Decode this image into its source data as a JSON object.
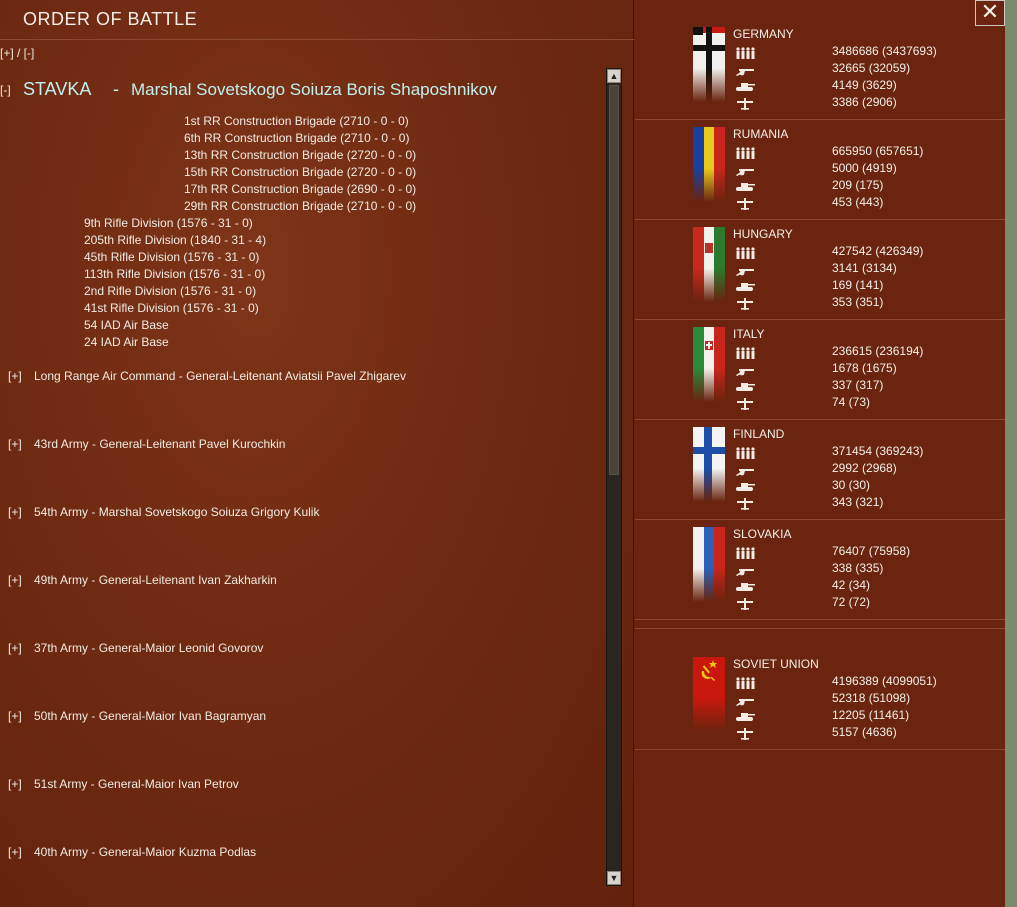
{
  "window": {
    "title": "ORDER OF BATTLE",
    "expand_collapse": "[+] / [-]",
    "close_glyph": "✕"
  },
  "hq": {
    "toggle": "[-]",
    "name": "STAVKA",
    "separator": "-",
    "commander": "Marshal Sovetskogo Soiuza Boris Shaposhnikov"
  },
  "brigades": [
    "1st RR Construction Brigade  (2710 - 0 - 0)",
    "6th RR Construction Brigade  (2710 - 0 - 0)",
    "13th RR Construction Brigade  (2720 - 0 - 0)",
    "15th RR Construction Brigade  (2720 - 0 - 0)",
    "17th RR Construction Brigade  (2690 - 0 - 0)",
    "29th RR Construction Brigade  (2710 - 0 - 0)"
  ],
  "divisions": [
    "9th Rifle Division  (1576 - 31 - 0)",
    "205th Rifle Division  (1840 - 31 - 4)",
    "45th Rifle Division  (1576 - 31 - 0)",
    "113th Rifle Division  (1576 - 31 - 0)",
    "2nd Rifle Division  (1576 - 31 - 0)",
    "41st Rifle Division  (1576 - 31 - 0)",
    "54 IAD Air Base",
    "24 IAD Air Base"
  ],
  "armies": [
    {
      "toggle": "[+]",
      "name": "Long Range Air Command  -  General-Leitenant Aviatsii Pavel Zhigarev"
    },
    {
      "toggle": "[+]",
      "name": "43rd Army  -  General-Leitenant Pavel Kurochkin"
    },
    {
      "toggle": "[+]",
      "name": "54th Army  -  Marshal Sovetskogo Soiuza Grigory Kulik"
    },
    {
      "toggle": "[+]",
      "name": "49th Army  -  General-Leitenant Ivan Zakharkin"
    },
    {
      "toggle": "[+]",
      "name": "37th Army  -  General-Maior Leonid Govorov"
    },
    {
      "toggle": "[+]",
      "name": "50th Army  -  General-Maior Ivan Bagramyan"
    },
    {
      "toggle": "[+]",
      "name": "51st Army  -  General-Maior Ivan Petrov"
    },
    {
      "toggle": "[+]",
      "name": "40th Army  -  General-Maior Kuzma Podlas"
    }
  ],
  "countries": [
    {
      "name": "GERMANY",
      "flag": "germany-war-ensign",
      "men": "3486686 (3437693)",
      "guns": "32665 (32059)",
      "afv": "4149 (3629)",
      "aircraft": "3386 (2906)"
    },
    {
      "name": "RUMANIA",
      "flag": "romania-tricolor",
      "men": "665950 (657651)",
      "guns": "5000 (4919)",
      "afv": "209 (175)",
      "aircraft": "453 (443)"
    },
    {
      "name": "HUNGARY",
      "flag": "hungary-tricolor",
      "men": "427542 (426349)",
      "guns": "3141 (3134)",
      "afv": "169 (141)",
      "aircraft": "353 (351)"
    },
    {
      "name": "ITALY",
      "flag": "italy-tricolor",
      "men": "236615 (236194)",
      "guns": "1678 (1675)",
      "afv": "337 (317)",
      "aircraft": "74 (73)"
    },
    {
      "name": "FINLAND",
      "flag": "finland-cross",
      "men": "371454 (369243)",
      "guns": "2992 (2968)",
      "afv": "30 (30)",
      "aircraft": "343 (321)"
    },
    {
      "name": "SLOVAKIA",
      "flag": "slovakia-tricolor",
      "men": "76407 (75958)",
      "guns": "338 (335)",
      "afv": "42 (34)",
      "aircraft": "72 (72)"
    },
    {
      "name": "SOVIET UNION",
      "flag": "soviet-hammer-sickle",
      "men": "4196389 (4099051)",
      "guns": "52318 (51098)",
      "afv": "12205 (11461)",
      "aircraft": "5157 (4636)"
    }
  ],
  "icons": {
    "men": "infantry-icon",
    "guns": "artillery-icon",
    "afv": "tank-icon",
    "aircraft": "aircraft-icon"
  },
  "colors": {
    "panel": "#6f2a12",
    "hq_text": "#bff0f0",
    "text": "#f2ebe4"
  }
}
